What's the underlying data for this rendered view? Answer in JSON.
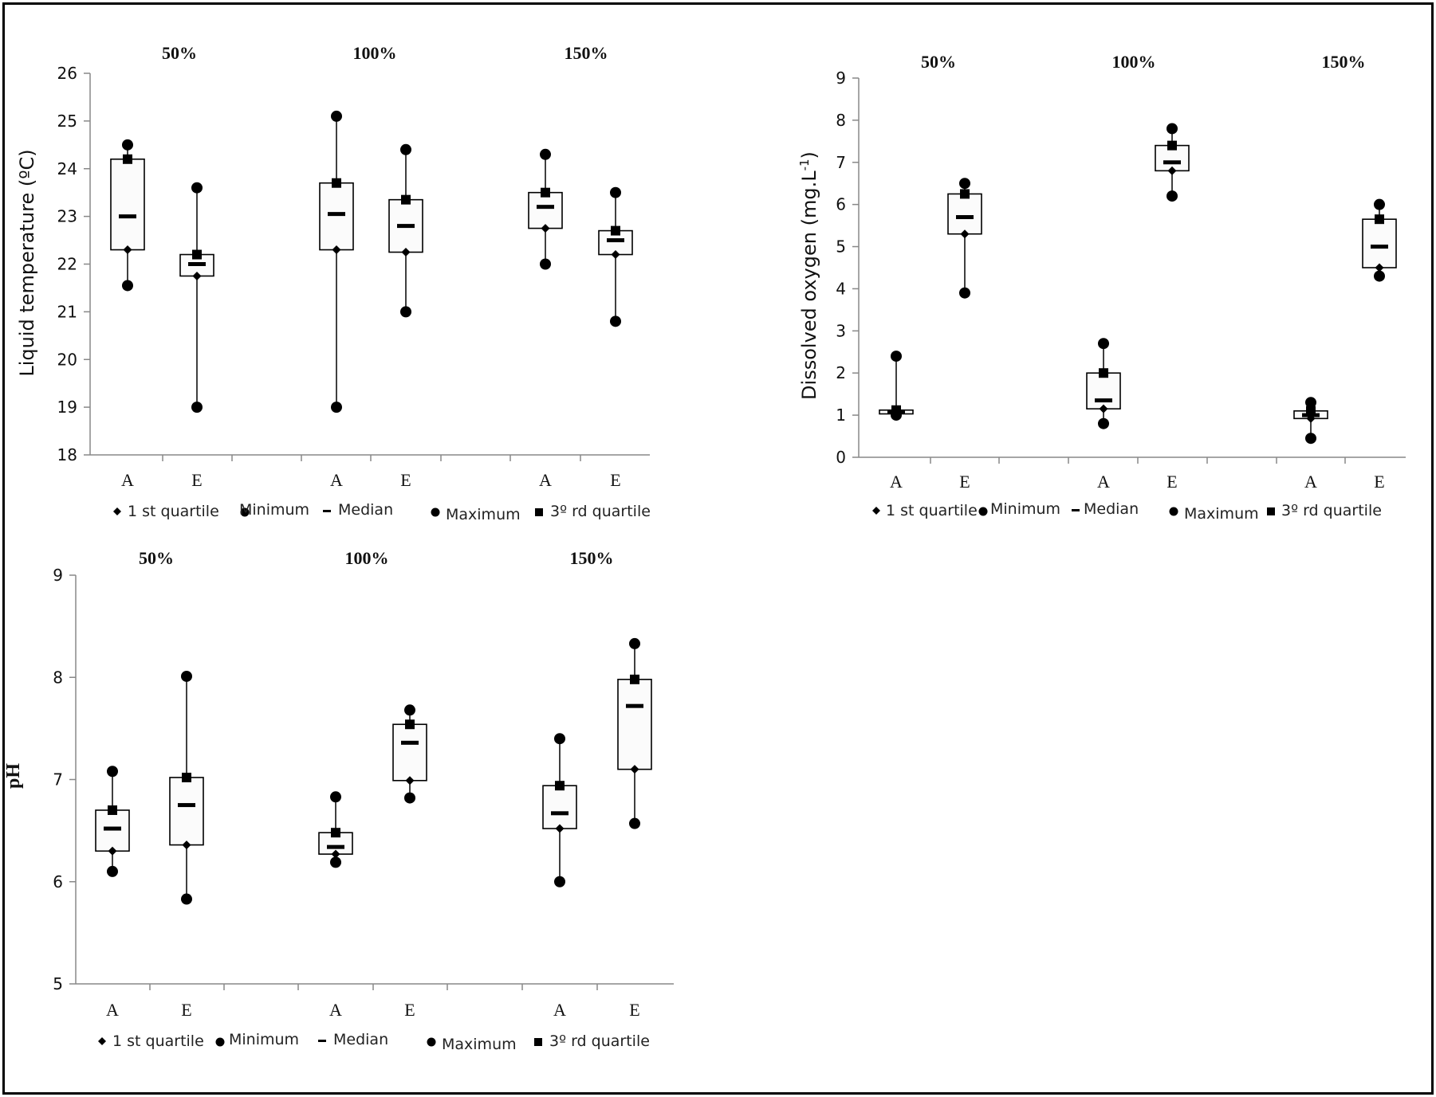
{
  "legend": {
    "first_quartile": "1 st quartile",
    "minimum": "Minimum",
    "median": "Median",
    "maximum": "Maximum",
    "third_quartile": "3º rd quartile"
  },
  "chart_data": [
    {
      "id": "temperature",
      "type": "box",
      "title": "",
      "ylabel": "Liquid temperature (ºC)",
      "ylim": [
        18,
        26
      ],
      "yticks": [
        18,
        19,
        20,
        21,
        22,
        23,
        24,
        25,
        26
      ],
      "group_labels": [
        "50%",
        "100%",
        "150%"
      ],
      "categories": [
        "A",
        "E"
      ],
      "boxes": [
        {
          "group": "50%",
          "category": "A",
          "min": 21.55,
          "q1": 22.3,
          "median": 23.0,
          "q3": 24.2,
          "max": 24.5
        },
        {
          "group": "50%",
          "category": "E",
          "min": 19.0,
          "q1": 21.75,
          "median": 22.0,
          "q3": 22.2,
          "max": 23.6
        },
        {
          "group": "100%",
          "category": "A",
          "min": 19.0,
          "q1": 22.3,
          "median": 23.05,
          "q3": 23.7,
          "max": 25.1
        },
        {
          "group": "100%",
          "category": "E",
          "min": 21.0,
          "q1": 22.25,
          "median": 22.8,
          "q3": 23.35,
          "max": 24.4
        },
        {
          "group": "150%",
          "category": "A",
          "min": 22.0,
          "q1": 22.75,
          "median": 23.2,
          "q3": 23.5,
          "max": 24.3
        },
        {
          "group": "150%",
          "category": "E",
          "min": 20.8,
          "q1": 22.2,
          "median": 22.5,
          "q3": 22.7,
          "max": 23.5
        }
      ]
    },
    {
      "id": "dissolved-oxygen",
      "type": "box",
      "title": "",
      "ylabel": "Dissolved oxygen (mg.L",
      "ylabel_superscript": "-1",
      "ylabel_suffix": ")",
      "ylim": [
        0,
        9
      ],
      "yticks": [
        0,
        1,
        2,
        3,
        4,
        5,
        6,
        7,
        8,
        9
      ],
      "group_labels": [
        "50%",
        "100%",
        "150%"
      ],
      "categories": [
        "A",
        "E"
      ],
      "boxes": [
        {
          "group": "50%",
          "category": "A",
          "min": 1.0,
          "q1": 1.03,
          "median": 1.08,
          "q3": 1.12,
          "max": 2.4
        },
        {
          "group": "50%",
          "category": "E",
          "min": 3.9,
          "q1": 5.3,
          "median": 5.7,
          "q3": 6.25,
          "max": 6.5
        },
        {
          "group": "100%",
          "category": "A",
          "min": 0.8,
          "q1": 1.15,
          "median": 1.35,
          "q3": 2.0,
          "max": 2.7
        },
        {
          "group": "100%",
          "category": "E",
          "min": 6.2,
          "q1": 6.8,
          "median": 7.0,
          "q3": 7.4,
          "max": 7.8
        },
        {
          "group": "150%",
          "category": "A",
          "min": 0.45,
          "q1": 0.92,
          "median": 1.0,
          "q3": 1.1,
          "max": 1.3
        },
        {
          "group": "150%",
          "category": "E",
          "min": 4.3,
          "q1": 4.5,
          "median": 5.0,
          "q3": 5.65,
          "max": 6.0
        }
      ]
    },
    {
      "id": "ph",
      "type": "box",
      "title": "",
      "ylabel": "pH",
      "ylim": [
        5,
        9
      ],
      "yticks": [
        5,
        6,
        7,
        8,
        9
      ],
      "group_labels": [
        "50%",
        "100%",
        "150%"
      ],
      "categories": [
        "A",
        "E"
      ],
      "boxes": [
        {
          "group": "50%",
          "category": "A",
          "min": 6.1,
          "q1": 6.3,
          "median": 6.52,
          "q3": 6.7,
          "max": 7.08
        },
        {
          "group": "50%",
          "category": "E",
          "min": 5.83,
          "q1": 6.36,
          "median": 6.75,
          "q3": 7.02,
          "max": 8.01
        },
        {
          "group": "100%",
          "category": "A",
          "min": 6.19,
          "q1": 6.27,
          "median": 6.34,
          "q3": 6.48,
          "max": 6.83
        },
        {
          "group": "100%",
          "category": "E",
          "min": 6.82,
          "q1": 6.99,
          "median": 7.36,
          "q3": 7.54,
          "max": 7.68
        },
        {
          "group": "150%",
          "category": "A",
          "min": 6.0,
          "q1": 6.52,
          "median": 6.67,
          "q3": 6.94,
          "max": 7.4
        },
        {
          "group": "150%",
          "category": "E",
          "min": 6.57,
          "q1": 7.1,
          "median": 7.72,
          "q3": 7.98,
          "max": 8.33
        }
      ]
    }
  ]
}
